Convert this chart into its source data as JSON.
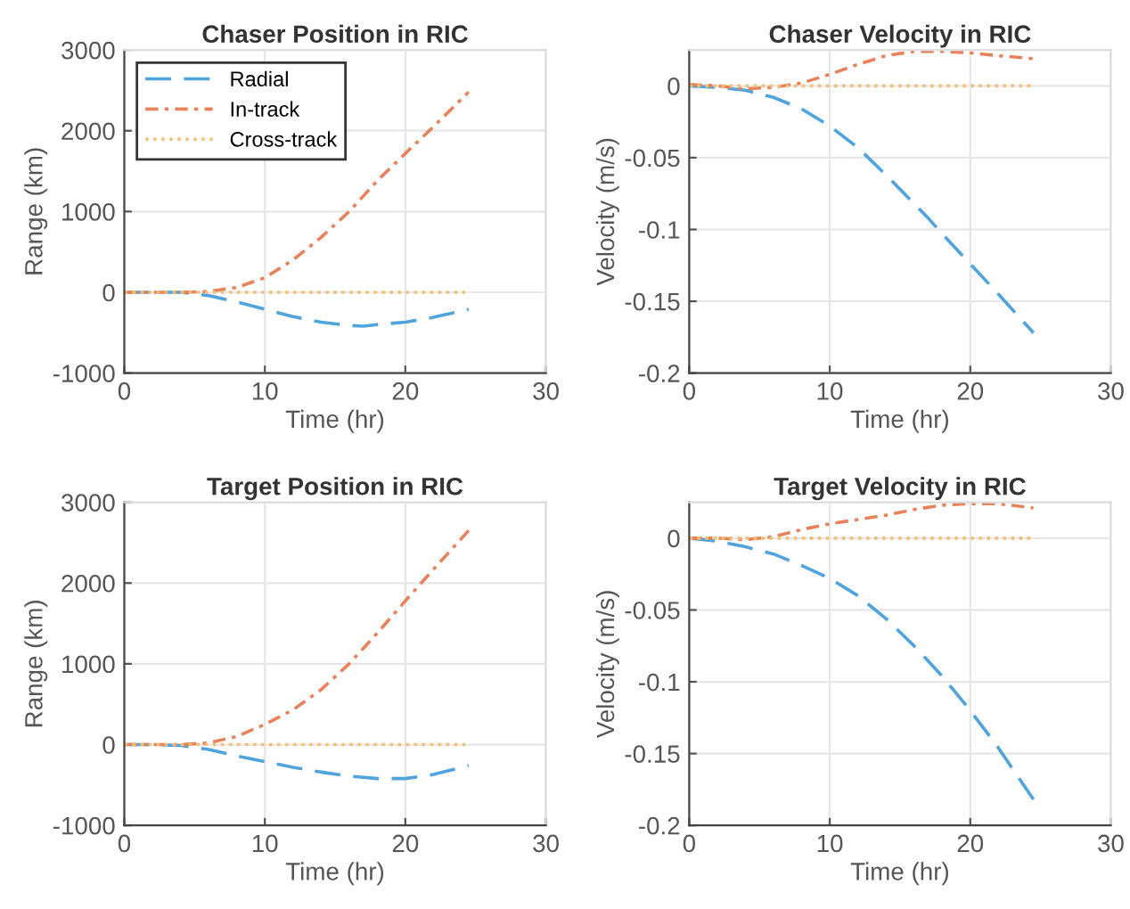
{
  "chart_data": [
    {
      "type": "line",
      "title": "Chaser Position in RIC",
      "xlabel": "Time (hr)",
      "ylabel": "Range (km)",
      "xlim": [
        0,
        30
      ],
      "xticks": [
        0,
        10,
        20,
        30
      ],
      "ylim": [
        -1000,
        3000
      ],
      "yticks": [
        -1000,
        0,
        1000,
        2000,
        3000
      ],
      "grid": true,
      "legend": "top left",
      "x": [
        0,
        2,
        4,
        6,
        8,
        10,
        12,
        14,
        16,
        17,
        18,
        20,
        22,
        24.5
      ],
      "series": [
        {
          "name": "Radial",
          "color": "#4fa3de",
          "line_style": "dashed",
          "values": [
            0,
            0,
            0,
            -40,
            -120,
            -210,
            -300,
            -370,
            -410,
            -420,
            -400,
            -370,
            -310,
            -210
          ]
        },
        {
          "name": "In-track",
          "color": "#e8825a",
          "line_style": "dashdot",
          "values": [
            0,
            0,
            0,
            10,
            60,
            180,
            400,
            680,
            1000,
            1190,
            1380,
            1720,
            2050,
            2480
          ]
        },
        {
          "name": "Cross-track",
          "color": "#f3c07a",
          "line_style": "dotted",
          "values": [
            0,
            0,
            0,
            0,
            0,
            0,
            0,
            0,
            0,
            0,
            0,
            0,
            0,
            0
          ]
        }
      ]
    },
    {
      "type": "line",
      "title": "Chaser Velocity in RIC",
      "xlabel": "Time (hr)",
      "ylabel": "Velocity (m/s)",
      "xlim": [
        0,
        30
      ],
      "xticks": [
        0,
        10,
        20,
        30
      ],
      "ylim": [
        -0.2,
        0.025
      ],
      "yticks": [
        -0.2,
        -0.15,
        -0.1,
        -0.05,
        0
      ],
      "grid": true,
      "x": [
        0,
        2,
        4,
        6,
        8,
        10,
        12,
        14,
        16,
        17,
        18,
        20,
        22,
        24.5
      ],
      "series": [
        {
          "color": "#4fa3de",
          "line_style": "dashed",
          "values": [
            0,
            -0.001,
            -0.003,
            -0.008,
            -0.016,
            -0.028,
            -0.043,
            -0.062,
            -0.082,
            -0.092,
            -0.103,
            -0.124,
            -0.145,
            -0.172
          ]
        },
        {
          "color": "#e8825a",
          "line_style": "dashdot",
          "values": [
            0.001,
            0,
            -0.002,
            -0.001,
            0.002,
            0.008,
            0.015,
            0.021,
            0.024,
            0.024,
            0.024,
            0.023,
            0.021,
            0.019
          ]
        },
        {
          "color": "#f3c07a",
          "line_style": "dotted",
          "values": [
            0,
            0,
            0,
            0,
            0,
            0,
            0,
            0,
            0,
            0,
            0,
            0,
            0,
            0
          ]
        }
      ]
    },
    {
      "type": "line",
      "title": "Target Position in RIC",
      "xlabel": "Time (hr)",
      "ylabel": "Range (km)",
      "xlim": [
        0,
        30
      ],
      "xticks": [
        0,
        10,
        20,
        30
      ],
      "ylim": [
        -1000,
        3000
      ],
      "yticks": [
        -1000,
        0,
        1000,
        2000,
        3000
      ],
      "grid": true,
      "x": [
        0,
        2,
        4,
        6,
        8,
        10,
        12,
        14,
        16,
        18,
        19,
        20,
        22,
        24.5
      ],
      "series": [
        {
          "color": "#4fa3de",
          "line_style": "dashed",
          "values": [
            0,
            0,
            -10,
            -60,
            -140,
            -210,
            -280,
            -340,
            -390,
            -420,
            -420,
            -420,
            -370,
            -260
          ]
        },
        {
          "color": "#e8825a",
          "line_style": "dashdot",
          "values": [
            0,
            0,
            0,
            20,
            100,
            250,
            430,
            680,
            1000,
            1380,
            1580,
            1780,
            2170,
            2650
          ]
        },
        {
          "color": "#f3c07a",
          "line_style": "dotted",
          "values": [
            0,
            0,
            0,
            0,
            0,
            0,
            0,
            0,
            0,
            0,
            0,
            0,
            0,
            0
          ]
        }
      ]
    },
    {
      "type": "line",
      "title": "Target Velocity in RIC",
      "xlabel": "Time (hr)",
      "ylabel": "Velocity (m/s)",
      "xlim": [
        0,
        30
      ],
      "xticks": [
        0,
        10,
        20,
        30
      ],
      "ylim": [
        -0.2,
        0.025
      ],
      "yticks": [
        -0.2,
        -0.15,
        -0.1,
        -0.05,
        0
      ],
      "grid": true,
      "x": [
        0,
        2,
        4,
        6,
        8,
        10,
        12,
        14,
        16,
        18,
        20,
        21,
        22,
        24.5
      ],
      "series": [
        {
          "color": "#4fa3de",
          "line_style": "dashed",
          "values": [
            0,
            -0.002,
            -0.006,
            -0.011,
            -0.019,
            -0.028,
            -0.04,
            -0.056,
            -0.075,
            -0.096,
            -0.12,
            -0.133,
            -0.146,
            -0.182
          ]
        },
        {
          "color": "#e8825a",
          "line_style": "dashdot",
          "values": [
            0,
            0,
            -0.001,
            0.001,
            0.006,
            0.01,
            0.013,
            0.016,
            0.02,
            0.023,
            0.024,
            0.024,
            0.024,
            0.021
          ]
        },
        {
          "color": "#f3c07a",
          "line_style": "dotted",
          "values": [
            0,
            0,
            0,
            0,
            0,
            0,
            0,
            0,
            0,
            0,
            0,
            0,
            0,
            0
          ]
        }
      ]
    }
  ]
}
